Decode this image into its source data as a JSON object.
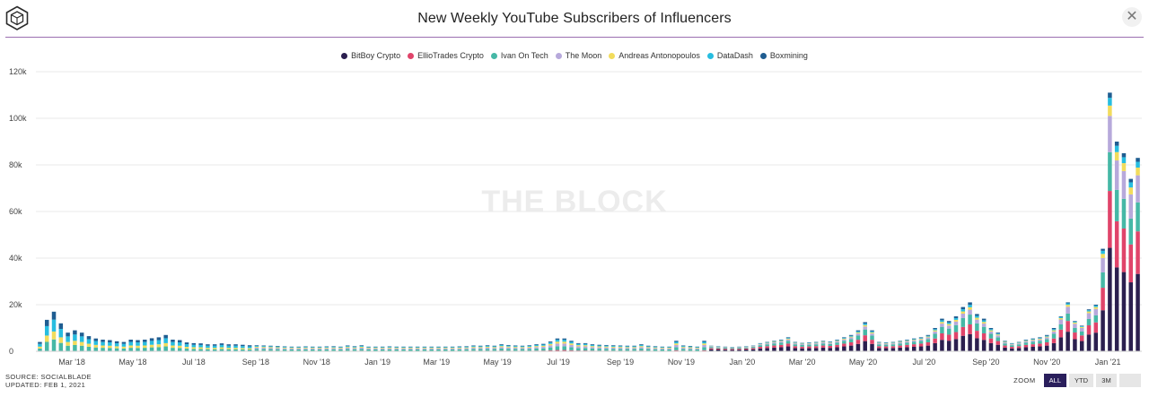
{
  "header": {
    "title": "New Weekly YouTube Subscribers of Influencers",
    "close_symbol": "✕"
  },
  "watermark": "THE BLOCK",
  "footer": {
    "source": "SOURCE: SOCIALBLADE",
    "updated": "UPDATED: FEB 1, 2021"
  },
  "zoom": {
    "label": "ZOOM",
    "buttons": [
      "ALL",
      "YTD",
      "3M",
      ""
    ],
    "active": "ALL"
  },
  "chart_data": {
    "type": "bar",
    "stacked": true,
    "title": "New Weekly YouTube Subscribers of Influencers",
    "xlabel": "",
    "ylabel": "",
    "ylim": [
      0,
      120000
    ],
    "y_ticks": [
      "0",
      "20k",
      "40k",
      "60k",
      "80k",
      "100k",
      "120k"
    ],
    "x_ticks": [
      "Mar '18",
      "May '18",
      "Jul '18",
      "Sep '18",
      "Nov '18",
      "Jan '19",
      "Mar '19",
      "May '19",
      "Jul '19",
      "Sep '19",
      "Nov '19",
      "Jan '20",
      "Mar '20",
      "May '20",
      "Jul '20",
      "Sep '20",
      "Nov '20",
      "Jan '21"
    ],
    "grid": "horizontal",
    "legend_position": "top-center",
    "series": [
      {
        "name": "BitBoy Crypto",
        "color": "#2b1f4f"
      },
      {
        "name": "EllioTrades Crypto",
        "color": "#e0446a"
      },
      {
        "name": "Ivan On Tech",
        "color": "#46b8a6"
      },
      {
        "name": "The Moon",
        "color": "#b7a9db"
      },
      {
        "name": "Andreas Antonopoulos",
        "color": "#f2dc5c"
      },
      {
        "name": "DataDash",
        "color": "#27bde0"
      },
      {
        "name": "Boxmining",
        "color": "#1f5d91"
      }
    ],
    "weeks": [
      {
        "date": "2018-01-28",
        "total": 4000
      },
      {
        "date": "2018-02-04",
        "total": 13500
      },
      {
        "date": "2018-02-11",
        "total": 17000
      },
      {
        "date": "2018-02-18",
        "total": 12000
      },
      {
        "date": "2018-02-25",
        "total": 8000
      },
      {
        "date": "2018-03-04",
        "total": 9000
      },
      {
        "date": "2018-03-11",
        "total": 8000
      },
      {
        "date": "2018-03-18",
        "total": 6500
      },
      {
        "date": "2018-03-25",
        "total": 5500
      },
      {
        "date": "2018-04-01",
        "total": 5000
      },
      {
        "date": "2018-04-08",
        "total": 4800
      },
      {
        "date": "2018-04-15",
        "total": 4300
      },
      {
        "date": "2018-04-22",
        "total": 4000
      },
      {
        "date": "2018-04-29",
        "total": 5000
      },
      {
        "date": "2018-05-06",
        "total": 4800
      },
      {
        "date": "2018-05-13",
        "total": 5000
      },
      {
        "date": "2018-05-20",
        "total": 5600
      },
      {
        "date": "2018-05-27",
        "total": 6000
      },
      {
        "date": "2018-06-03",
        "total": 7000
      },
      {
        "date": "2018-06-10",
        "total": 5000
      },
      {
        "date": "2018-06-17",
        "total": 4800
      },
      {
        "date": "2018-06-24",
        "total": 3800
      },
      {
        "date": "2018-07-01",
        "total": 3500
      },
      {
        "date": "2018-07-08",
        "total": 3400
      },
      {
        "date": "2018-07-15",
        "total": 3000
      },
      {
        "date": "2018-07-22",
        "total": 3000
      },
      {
        "date": "2018-07-29",
        "total": 3400
      },
      {
        "date": "2018-08-05",
        "total": 3000
      },
      {
        "date": "2018-08-12",
        "total": 3000
      },
      {
        "date": "2018-08-19",
        "total": 2800
      },
      {
        "date": "2018-08-26",
        "total": 2600
      },
      {
        "date": "2018-09-02",
        "total": 2600
      },
      {
        "date": "2018-09-09",
        "total": 2500
      },
      {
        "date": "2018-09-16",
        "total": 2400
      },
      {
        "date": "2018-09-23",
        "total": 2300
      },
      {
        "date": "2018-09-30",
        "total": 2100
      },
      {
        "date": "2018-10-07",
        "total": 2000
      },
      {
        "date": "2018-10-14",
        "total": 2000
      },
      {
        "date": "2018-10-21",
        "total": 2100
      },
      {
        "date": "2018-10-28",
        "total": 2000
      },
      {
        "date": "2018-11-04",
        "total": 2000
      },
      {
        "date": "2018-11-11",
        "total": 2100
      },
      {
        "date": "2018-11-18",
        "total": 2200
      },
      {
        "date": "2018-11-25",
        "total": 2000
      },
      {
        "date": "2018-12-02",
        "total": 2500
      },
      {
        "date": "2018-12-09",
        "total": 2200
      },
      {
        "date": "2018-12-16",
        "total": 2600
      },
      {
        "date": "2018-12-23",
        "total": 2000
      },
      {
        "date": "2018-12-30",
        "total": 2000
      },
      {
        "date": "2019-01-06",
        "total": 2000
      },
      {
        "date": "2019-01-13",
        "total": 2100
      },
      {
        "date": "2019-01-20",
        "total": 2000
      },
      {
        "date": "2019-01-27",
        "total": 2000
      },
      {
        "date": "2019-02-03",
        "total": 2000
      },
      {
        "date": "2019-02-10",
        "total": 2000
      },
      {
        "date": "2019-02-17",
        "total": 2000
      },
      {
        "date": "2019-02-24",
        "total": 2000
      },
      {
        "date": "2019-03-03",
        "total": 2000
      },
      {
        "date": "2019-03-10",
        "total": 2000
      },
      {
        "date": "2019-03-17",
        "total": 2000
      },
      {
        "date": "2019-03-24",
        "total": 2100
      },
      {
        "date": "2019-03-31",
        "total": 2200
      },
      {
        "date": "2019-04-07",
        "total": 2500
      },
      {
        "date": "2019-04-14",
        "total": 2400
      },
      {
        "date": "2019-04-21",
        "total": 2600
      },
      {
        "date": "2019-04-28",
        "total": 2400
      },
      {
        "date": "2019-05-05",
        "total": 3000
      },
      {
        "date": "2019-05-12",
        "total": 2700
      },
      {
        "date": "2019-05-19",
        "total": 2500
      },
      {
        "date": "2019-05-26",
        "total": 2400
      },
      {
        "date": "2019-06-02",
        "total": 2600
      },
      {
        "date": "2019-06-09",
        "total": 3000
      },
      {
        "date": "2019-06-16",
        "total": 3200
      },
      {
        "date": "2019-06-23",
        "total": 4200
      },
      {
        "date": "2019-06-30",
        "total": 5500
      },
      {
        "date": "2019-07-07",
        "total": 5500
      },
      {
        "date": "2019-07-14",
        "total": 4500
      },
      {
        "date": "2019-07-21",
        "total": 3500
      },
      {
        "date": "2019-07-28",
        "total": 3500
      },
      {
        "date": "2019-08-04",
        "total": 3000
      },
      {
        "date": "2019-08-11",
        "total": 2800
      },
      {
        "date": "2019-08-18",
        "total": 2700
      },
      {
        "date": "2019-08-25",
        "total": 2600
      },
      {
        "date": "2019-09-01",
        "total": 2500
      },
      {
        "date": "2019-09-08",
        "total": 2400
      },
      {
        "date": "2019-09-15",
        "total": 2400
      },
      {
        "date": "2019-09-22",
        "total": 3000
      },
      {
        "date": "2019-09-29",
        "total": 2400
      },
      {
        "date": "2019-10-06",
        "total": 2200
      },
      {
        "date": "2019-10-13",
        "total": 2000
      },
      {
        "date": "2019-10-20",
        "total": 2000
      },
      {
        "date": "2019-10-27",
        "total": 4500
      },
      {
        "date": "2019-11-03",
        "total": 2500
      },
      {
        "date": "2019-11-10",
        "total": 2300
      },
      {
        "date": "2019-11-17",
        "total": 2000
      },
      {
        "date": "2019-11-24",
        "total": 4500
      },
      {
        "date": "2019-12-01",
        "total": 2400
      },
      {
        "date": "2019-12-08",
        "total": 2200
      },
      {
        "date": "2019-12-15",
        "total": 2000
      },
      {
        "date": "2019-12-22",
        "total": 1800
      },
      {
        "date": "2019-12-29",
        "total": 2000
      },
      {
        "date": "2020-01-05",
        "total": 2200
      },
      {
        "date": "2020-01-12",
        "total": 2500
      },
      {
        "date": "2020-01-19",
        "total": 3500
      },
      {
        "date": "2020-01-26",
        "total": 4000
      },
      {
        "date": "2020-02-02",
        "total": 4500
      },
      {
        "date": "2020-02-09",
        "total": 5000
      },
      {
        "date": "2020-02-16",
        "total": 6000
      },
      {
        "date": "2020-02-23",
        "total": 4000
      },
      {
        "date": "2020-03-01",
        "total": 3600
      },
      {
        "date": "2020-03-08",
        "total": 3800
      },
      {
        "date": "2020-03-15",
        "total": 4000
      },
      {
        "date": "2020-03-22",
        "total": 4500
      },
      {
        "date": "2020-03-29",
        "total": 4200
      },
      {
        "date": "2020-04-05",
        "total": 5000
      },
      {
        "date": "2020-04-12",
        "total": 6000
      },
      {
        "date": "2020-04-19",
        "total": 7000
      },
      {
        "date": "2020-04-26",
        "total": 9000
      },
      {
        "date": "2020-05-03",
        "total": 12500
      },
      {
        "date": "2020-05-10",
        "total": 9000
      },
      {
        "date": "2020-05-17",
        "total": 4000
      },
      {
        "date": "2020-05-24",
        "total": 3800
      },
      {
        "date": "2020-05-31",
        "total": 4000
      },
      {
        "date": "2020-06-07",
        "total": 4500
      },
      {
        "date": "2020-06-14",
        "total": 5000
      },
      {
        "date": "2020-06-21",
        "total": 5500
      },
      {
        "date": "2020-06-28",
        "total": 6000
      },
      {
        "date": "2020-07-05",
        "total": 7000
      },
      {
        "date": "2020-07-12",
        "total": 10000
      },
      {
        "date": "2020-07-19",
        "total": 14000
      },
      {
        "date": "2020-07-26",
        "total": 13000
      },
      {
        "date": "2020-08-02",
        "total": 15000
      },
      {
        "date": "2020-08-09",
        "total": 19000
      },
      {
        "date": "2020-08-16",
        "total": 21000
      },
      {
        "date": "2020-08-23",
        "total": 16000
      },
      {
        "date": "2020-08-30",
        "total": 14000
      },
      {
        "date": "2020-09-06",
        "total": 10000
      },
      {
        "date": "2020-09-13",
        "total": 8000
      },
      {
        "date": "2020-09-20",
        "total": 4500
      },
      {
        "date": "2020-09-27",
        "total": 3500
      },
      {
        "date": "2020-10-04",
        "total": 4000
      },
      {
        "date": "2020-10-11",
        "total": 5000
      },
      {
        "date": "2020-10-18",
        "total": 5500
      },
      {
        "date": "2020-10-25",
        "total": 6000
      },
      {
        "date": "2020-11-01",
        "total": 7000
      },
      {
        "date": "2020-11-08",
        "total": 10000
      },
      {
        "date": "2020-11-15",
        "total": 15000
      },
      {
        "date": "2020-11-22",
        "total": 21000
      },
      {
        "date": "2020-11-29",
        "total": 13000
      },
      {
        "date": "2020-12-06",
        "total": 11000
      },
      {
        "date": "2020-12-13",
        "total": 18000
      },
      {
        "date": "2020-12-20",
        "total": 20000
      },
      {
        "date": "2020-12-27",
        "total": 44000
      },
      {
        "date": "2021-01-03",
        "total": 111000
      },
      {
        "date": "2021-01-10",
        "total": 90000
      },
      {
        "date": "2021-01-17",
        "total": 85000
      },
      {
        "date": "2021-01-24",
        "total": 74000
      },
      {
        "date": "2021-01-31",
        "total": 83000
      }
    ]
  }
}
